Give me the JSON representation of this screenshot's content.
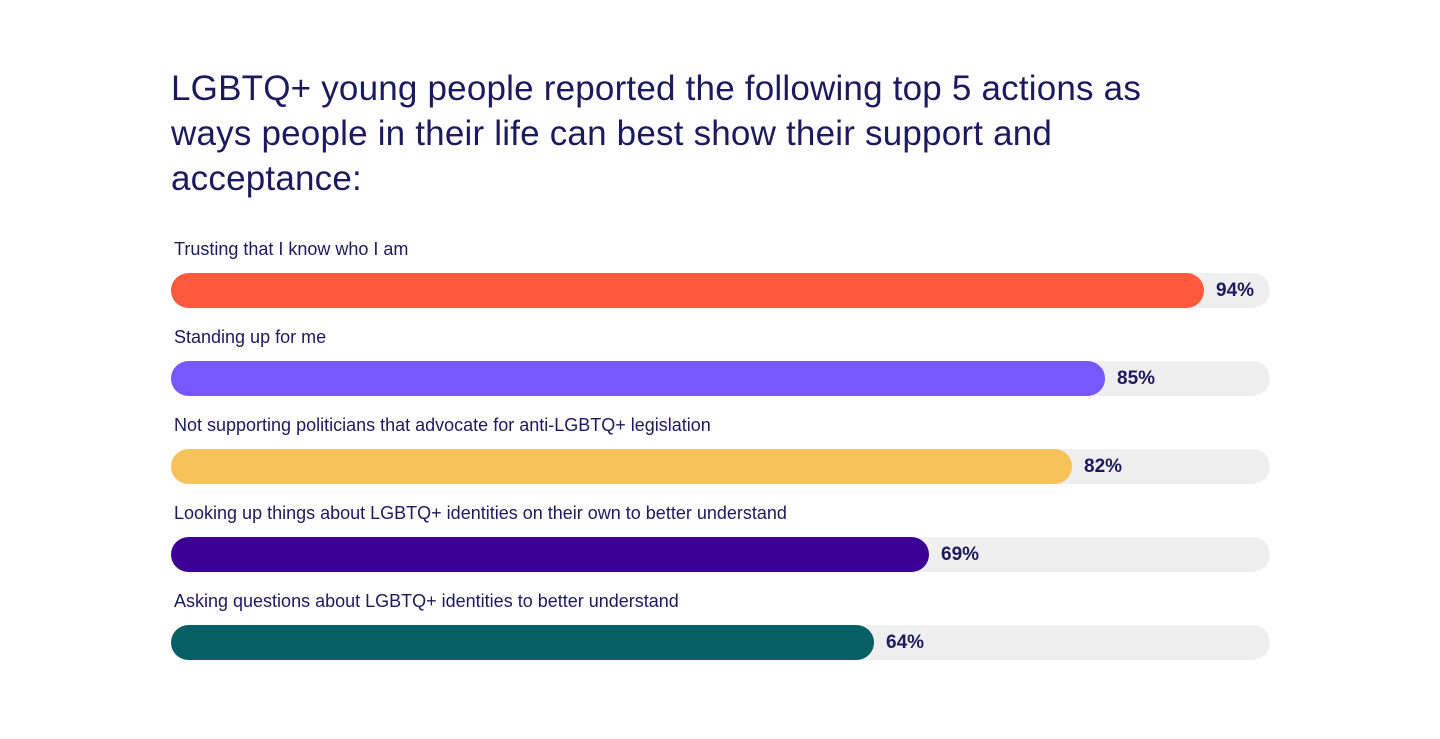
{
  "chart_data": {
    "type": "bar",
    "orientation": "horizontal",
    "title": "LGBTQ+ young people reported the following top 5 actions as ways people in their life can best show their support and acceptance:",
    "categories": [
      "Trusting that I know who I am",
      "Standing up for me",
      "Not supporting politicians that advocate for anti-LGBTQ+ legislation",
      "Looking up things about LGBTQ+ identities on their own to better understand",
      "Asking questions about LGBTQ+ identities to better understand"
    ],
    "values": [
      94,
      85,
      82,
      69,
      64
    ],
    "value_labels": [
      "94%",
      "85%",
      "82%",
      "69%",
      "64%"
    ],
    "colors": [
      "#ff5a3d",
      "#7758ff",
      "#f8c25a",
      "#3d0095",
      "#075f66"
    ],
    "xlim": [
      0,
      100
    ],
    "unit": "%",
    "grid": false,
    "legend": "none",
    "track_color": "#efefef"
  }
}
